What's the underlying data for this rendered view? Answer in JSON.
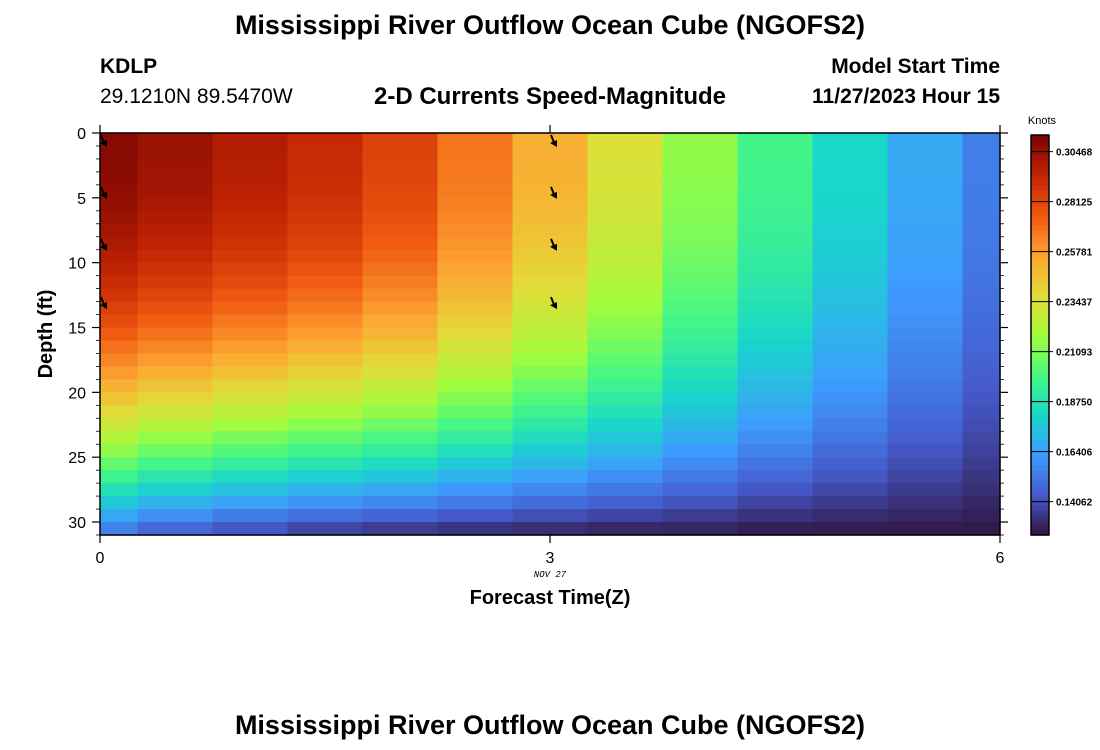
{
  "header": {
    "title": "Mississippi River Outflow Ocean Cube (NGOFS2)",
    "station_id": "KDLP",
    "station_coords": "29.1210N  89.5470W",
    "plot_subtitle": "2-D Currents Speed-Magnitude",
    "model_start_label": "Model Start Time",
    "model_start_value": "11/27/2023 Hour 15"
  },
  "footer": {
    "repeat_title": "Mississippi River Outflow Ocean Cube (NGOFS2)"
  },
  "chart_data": {
    "type": "heatmap",
    "title": "2-D Currents Speed-Magnitude",
    "xlabel": "Forecast Time(Z)",
    "ylabel": "Depth (ft)",
    "x_date_label": "NOV 27",
    "xlim": [
      0,
      6
    ],
    "ylim": [
      31,
      0
    ],
    "x_ticks": [
      0,
      3,
      6
    ],
    "x_tick_labels": [
      "0",
      "3",
      "6"
    ],
    "y_ticks": [
      0,
      5,
      10,
      15,
      20,
      25,
      30
    ],
    "y_tick_labels": [
      "0",
      "5",
      "10",
      "15",
      "20",
      "25",
      "30"
    ],
    "colorbar": {
      "label": "Knots",
      "range": [
        0.125,
        0.3125
      ],
      "ticks": [
        0.30468,
        0.28125,
        0.25781,
        0.23437,
        0.21093,
        0.1875,
        0.16406,
        0.14062
      ],
      "tick_labels": [
        "0.30468",
        "0.28125",
        "0.25781",
        "0.23437",
        "0.21093",
        "0.18750",
        "0.16406",
        "0.14062"
      ]
    },
    "time_steps": [
      0,
      0.5,
      1,
      1.5,
      2,
      2.5,
      3,
      3.5,
      4,
      4.5,
      5,
      5.5,
      6
    ],
    "surface_speed": [
      0.309,
      0.304,
      0.298,
      0.292,
      0.283,
      0.268,
      0.252,
      0.235,
      0.215,
      0.198,
      0.182,
      0.167,
      0.154
    ],
    "speed_at_31ft": [
      0.15,
      0.142,
      0.137,
      0.133,
      0.131,
      0.129,
      0.128,
      0.127,
      0.127,
      0.126,
      0.126,
      0.126,
      0.126
    ],
    "arrows": {
      "times": [
        0,
        3
      ],
      "depths": [
        0,
        4,
        8,
        12.5
      ],
      "direction": "southeast"
    }
  }
}
